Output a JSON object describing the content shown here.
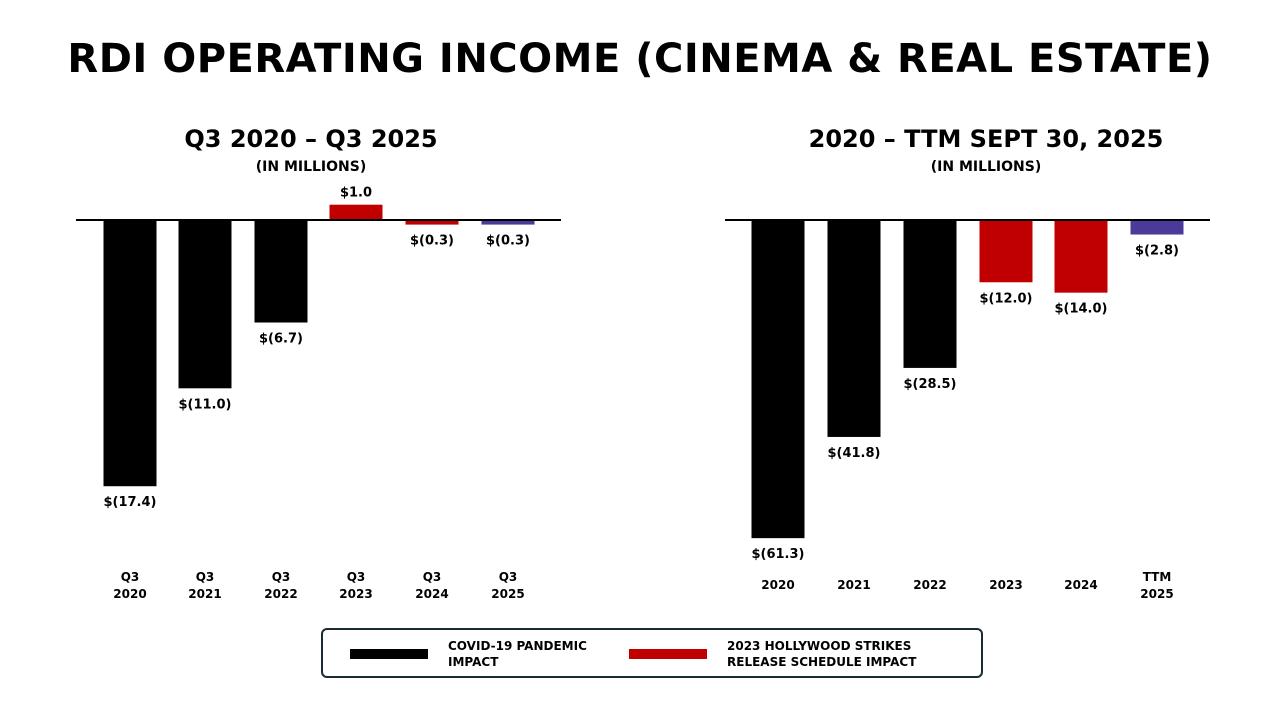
{
  "title": "RDI OPERATING INCOME (CINEMA & REAL ESTATE)",
  "colors": {
    "covid": "#000000",
    "strikes": "#c00000",
    "recent": "#4b3a9a",
    "axis": "#000000"
  },
  "chart_data": [
    {
      "type": "bar",
      "title": "Q3 2020 – Q3 2025",
      "subtitle": "(IN MILLIONS)",
      "categories": [
        [
          "Q3",
          "2020"
        ],
        [
          "Q3",
          "2021"
        ],
        [
          "Q3",
          "2022"
        ],
        [
          "Q3",
          "2023"
        ],
        [
          "Q3",
          "2024"
        ],
        [
          "Q3",
          "2025"
        ]
      ],
      "values": [
        -17.4,
        -11.0,
        -6.7,
        1.0,
        -0.3,
        -0.3
      ],
      "labels": [
        "$(17.4)",
        "$(11.0)",
        "$(6.7)",
        "$1.0",
        "$(0.3)",
        "$(0.3)"
      ],
      "groups": [
        "covid",
        "covid",
        "covid",
        "strikes",
        "strikes",
        "recent"
      ],
      "ylim": [
        -17.4,
        1.0
      ]
    },
    {
      "type": "bar",
      "title": "2020 – TTM SEPT 30, 2025",
      "subtitle": "(IN MILLIONS)",
      "categories": [
        [
          "2020"
        ],
        [
          "2021"
        ],
        [
          "2022"
        ],
        [
          "2023"
        ],
        [
          "2024"
        ],
        [
          "TTM",
          "2025"
        ]
      ],
      "values": [
        -61.3,
        -41.8,
        -28.5,
        -12.0,
        -14.0,
        -2.8
      ],
      "labels": [
        "$(61.3)",
        "$(41.8)",
        "$(28.5)",
        "$(12.0)",
        "$(14.0)",
        "$(2.8)"
      ],
      "groups": [
        "covid",
        "covid",
        "covid",
        "strikes",
        "strikes",
        "recent"
      ],
      "ylim": [
        -61.3,
        0
      ]
    }
  ],
  "legend": [
    {
      "key": "covid",
      "label": "COVID-19 PANDEMIC IMPACT"
    },
    {
      "key": "strikes",
      "label": "2023 HOLLYWOOD STRIKES RELEASE SCHEDULE IMPACT"
    }
  ]
}
